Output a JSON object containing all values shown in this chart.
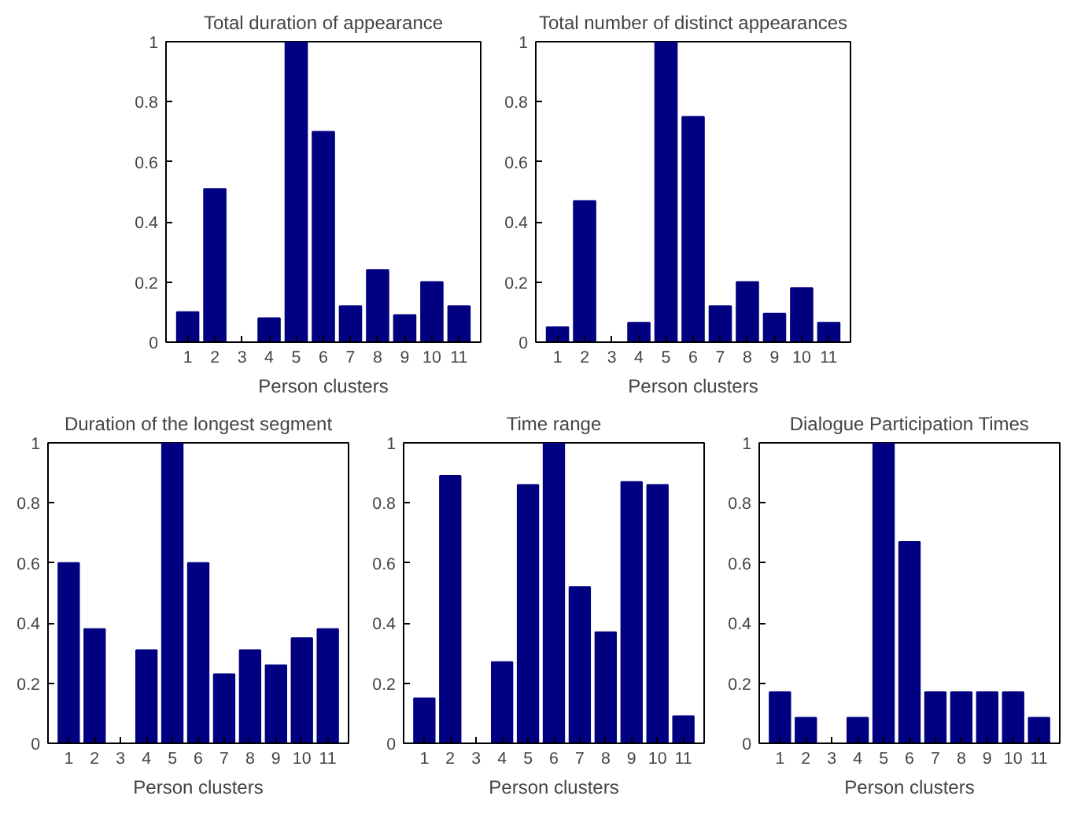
{
  "chart_data": [
    {
      "type": "bar",
      "title": "Total duration of appearance",
      "xlabel": "Person clusters",
      "categories": [
        "1",
        "2",
        "3",
        "4",
        "5",
        "6",
        "7",
        "8",
        "9",
        "10",
        "11"
      ],
      "values": [
        0.1,
        0.51,
        0,
        0.08,
        1,
        0.7,
        0.12,
        0.24,
        0.09,
        0.2,
        0.12
      ],
      "color": "#000080",
      "ylim": [
        0,
        1
      ],
      "yticks": [
        0,
        0.2,
        0.4,
        0.6,
        0.8,
        1
      ]
    },
    {
      "type": "bar",
      "title": "Total number of distinct appearances",
      "xlabel": "Person clusters",
      "categories": [
        "1",
        "2",
        "3",
        "4",
        "5",
        "6",
        "7",
        "8",
        "9",
        "10",
        "11"
      ],
      "values": [
        0.05,
        0.47,
        0,
        0.065,
        1,
        0.75,
        0.12,
        0.2,
        0.095,
        0.18,
        0.065
      ],
      "color": "#000080",
      "ylim": [
        0,
        1
      ],
      "yticks": [
        0,
        0.2,
        0.4,
        0.6,
        0.8,
        1
      ]
    },
    {
      "type": "bar",
      "title": "Duration of the longest segment",
      "xlabel": "Person clusters",
      "categories": [
        "1",
        "2",
        "3",
        "4",
        "5",
        "6",
        "7",
        "8",
        "9",
        "10",
        "11"
      ],
      "values": [
        0.6,
        0.38,
        0,
        0.31,
        1,
        0.6,
        0.23,
        0.31,
        0.26,
        0.35,
        0.38
      ],
      "color": "#000080",
      "ylim": [
        0,
        1
      ],
      "yticks": [
        0,
        0.2,
        0.4,
        0.6,
        0.8,
        1
      ]
    },
    {
      "type": "bar",
      "title": "Time range",
      "xlabel": "Person clusters",
      "categories": [
        "1",
        "2",
        "3",
        "4",
        "5",
        "6",
        "7",
        "8",
        "9",
        "10",
        "11"
      ],
      "values": [
        0.15,
        0.89,
        0,
        0.27,
        0.86,
        1,
        0.52,
        0.37,
        0.87,
        0.86,
        0.09
      ],
      "color": "#000080",
      "ylim": [
        0,
        1
      ],
      "yticks": [
        0,
        0.2,
        0.4,
        0.6,
        0.8,
        1
      ]
    },
    {
      "type": "bar",
      "title": "Dialogue Participation Times",
      "xlabel": "Person clusters",
      "categories": [
        "1",
        "2",
        "3",
        "4",
        "5",
        "6",
        "7",
        "8",
        "9",
        "10",
        "11"
      ],
      "values": [
        0.17,
        0.085,
        0,
        0.085,
        1,
        0.67,
        0.17,
        0.17,
        0.17,
        0.17,
        0.085
      ],
      "color": "#000080",
      "ylim": [
        0,
        1
      ],
      "yticks": [
        0,
        0.2,
        0.4,
        0.6,
        0.8,
        1
      ]
    }
  ]
}
